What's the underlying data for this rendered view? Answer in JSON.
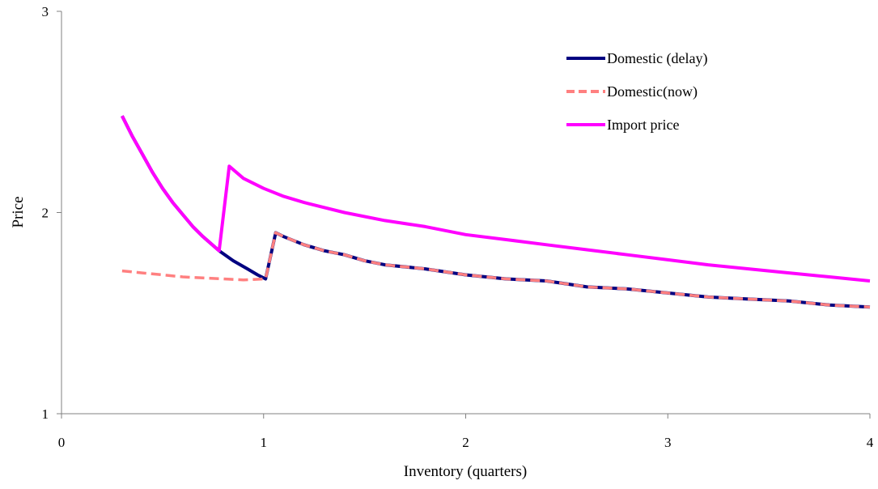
{
  "chart_data": {
    "type": "line",
    "title": "",
    "xlabel": "Inventory (quarters)",
    "ylabel": "Price",
    "xlim": [
      0,
      4
    ],
    "ylim": [
      1,
      3
    ],
    "x_ticks": [
      0,
      1,
      2,
      3,
      4
    ],
    "y_ticks": [
      1,
      2,
      3
    ],
    "x_tick_labels": [
      "0",
      "1",
      "2",
      "3",
      "4"
    ],
    "y_tick_labels": [
      "1",
      "2",
      "3"
    ],
    "grid": false,
    "legend_position": "top-right",
    "series": [
      {
        "name": "Domestic (delay)",
        "color": "#000080",
        "style": "solid",
        "points": [
          [
            0.3,
            2.48
          ],
          [
            0.35,
            2.38
          ],
          [
            0.4,
            2.29
          ],
          [
            0.45,
            2.2
          ],
          [
            0.5,
            2.12
          ],
          [
            0.55,
            2.05
          ],
          [
            0.6,
            1.99
          ],
          [
            0.65,
            1.93
          ],
          [
            0.7,
            1.88
          ],
          [
            0.78,
            1.81
          ],
          [
            0.85,
            1.76
          ],
          [
            0.92,
            1.72
          ],
          [
            0.97,
            1.69
          ],
          [
            1.01,
            1.67
          ],
          [
            1.06,
            1.9
          ],
          [
            1.1,
            1.88
          ],
          [
            1.2,
            1.84
          ],
          [
            1.3,
            1.81
          ],
          [
            1.4,
            1.79
          ],
          [
            1.5,
            1.76
          ],
          [
            1.6,
            1.74
          ],
          [
            1.8,
            1.72
          ],
          [
            2.0,
            1.69
          ],
          [
            2.2,
            1.67
          ],
          [
            2.4,
            1.66
          ],
          [
            2.6,
            1.63
          ],
          [
            2.8,
            1.62
          ],
          [
            3.0,
            1.6
          ],
          [
            3.2,
            1.58
          ],
          [
            3.4,
            1.57
          ],
          [
            3.6,
            1.56
          ],
          [
            3.8,
            1.54
          ],
          [
            4.0,
            1.53
          ]
        ]
      },
      {
        "name": "Domestic(now)",
        "color": "#FF8080",
        "style": "dashed",
        "points": [
          [
            0.3,
            1.71
          ],
          [
            0.4,
            1.7
          ],
          [
            0.5,
            1.69
          ],
          [
            0.6,
            1.68
          ],
          [
            0.7,
            1.675
          ],
          [
            0.8,
            1.67
          ],
          [
            0.9,
            1.665
          ],
          [
            1.01,
            1.67
          ],
          [
            1.06,
            1.9
          ],
          [
            1.1,
            1.88
          ],
          [
            1.2,
            1.84
          ],
          [
            1.3,
            1.81
          ],
          [
            1.4,
            1.79
          ],
          [
            1.5,
            1.76
          ],
          [
            1.6,
            1.74
          ],
          [
            1.8,
            1.72
          ],
          [
            2.0,
            1.69
          ],
          [
            2.2,
            1.67
          ],
          [
            2.4,
            1.66
          ],
          [
            2.6,
            1.63
          ],
          [
            2.8,
            1.62
          ],
          [
            3.0,
            1.6
          ],
          [
            3.2,
            1.58
          ],
          [
            3.4,
            1.57
          ],
          [
            3.6,
            1.56
          ],
          [
            3.8,
            1.54
          ],
          [
            4.0,
            1.53
          ]
        ]
      },
      {
        "name": "Import price",
        "color": "#FF00FF",
        "style": "solid",
        "points": [
          [
            0.3,
            2.48
          ],
          [
            0.35,
            2.38
          ],
          [
            0.4,
            2.29
          ],
          [
            0.45,
            2.2
          ],
          [
            0.5,
            2.12
          ],
          [
            0.55,
            2.05
          ],
          [
            0.6,
            1.99
          ],
          [
            0.65,
            1.93
          ],
          [
            0.7,
            1.88
          ],
          [
            0.78,
            1.81
          ],
          [
            0.83,
            2.23
          ],
          [
            0.9,
            2.17
          ],
          [
            1.0,
            2.12
          ],
          [
            1.1,
            2.08
          ],
          [
            1.2,
            2.05
          ],
          [
            1.4,
            2.0
          ],
          [
            1.6,
            1.96
          ],
          [
            1.8,
            1.93
          ],
          [
            2.0,
            1.89
          ],
          [
            2.2,
            1.865
          ],
          [
            2.4,
            1.84
          ],
          [
            2.6,
            1.815
          ],
          [
            2.8,
            1.79
          ],
          [
            3.0,
            1.765
          ],
          [
            3.2,
            1.74
          ],
          [
            3.4,
            1.72
          ],
          [
            3.6,
            1.7
          ],
          [
            3.8,
            1.68
          ],
          [
            4.0,
            1.66
          ]
        ]
      }
    ]
  }
}
